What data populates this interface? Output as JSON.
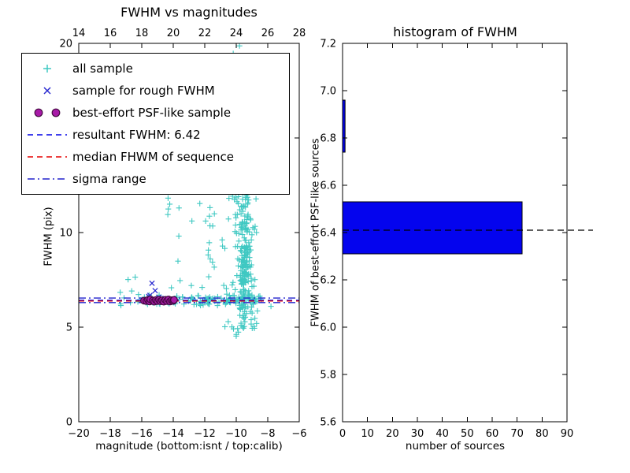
{
  "colors": {
    "all_sample": "#3fc8c2",
    "rough": "#2a2ad0",
    "psf_fill": "#a81aa8",
    "psf_edge": "#43093f",
    "resultant": "#0000e6",
    "median": "#e60000",
    "sigma": "#2222cc",
    "bar": "#0404ee",
    "axis": "#000000"
  },
  "chart_data": [
    {
      "type": "scatter",
      "title": "FWHM vs magnitudes",
      "xlabel": "magnitude (bottom:isnt / top:calib)",
      "ylabel": "FWHM (pix)",
      "xlim": [
        -20,
        -6
      ],
      "ylim": [
        0,
        20
      ],
      "x_ticks": [
        -20,
        -18,
        -16,
        -14,
        -12,
        -10,
        -8,
        -6
      ],
      "y_ticks": [
        0,
        5,
        10,
        15,
        20
      ],
      "top_axis_ticks": [
        14,
        16,
        18,
        20,
        22,
        24,
        26,
        28
      ],
      "grid": false,
      "legend_position": "upper left",
      "legend": [
        {
          "marker": "plus",
          "label": "all sample"
        },
        {
          "marker": "cross",
          "label": "sample for rough FWHM"
        },
        {
          "marker": "circles",
          "label": "best-effort PSF-like sample"
        },
        {
          "marker": "dash-blue",
          "label": "resultant FWHM: 6.42"
        },
        {
          "marker": "dash-red",
          "label": "median FHWM of sequence"
        },
        {
          "marker": "dashdot-blue",
          "label": "sigma range"
        }
      ],
      "lines": [
        {
          "name": "resultant-fwhm",
          "y": 6.42,
          "style": "dashed",
          "color_key": "resultant"
        },
        {
          "name": "median-fwhm",
          "y": 6.38,
          "style": "dashed",
          "color_key": "median"
        },
        {
          "name": "sigma-upper",
          "y": 6.54,
          "style": "dashdot",
          "color_key": "sigma"
        },
        {
          "name": "sigma-lower",
          "y": 6.3,
          "style": "dashdot",
          "color_key": "sigma"
        }
      ],
      "series": [
        {
          "name": "all sample",
          "marker": "plus",
          "color_key": "all_sample",
          "seed": 7,
          "clusters": [
            {
              "count": 130,
              "x": {
                "dist": "uniform",
                "min": -16.3,
                "max": -8.2
              },
              "y": {
                "dist": "normal",
                "mean": 6.42,
                "sd": 0.13
              }
            },
            {
              "count": 150,
              "x": {
                "dist": "normal",
                "mean": -9.45,
                "sd": 0.3
              },
              "y": {
                "dist": "normal",
                "mean": 10.5,
                "sd": 2.1
              }
            },
            {
              "count": 80,
              "x": {
                "dist": "normal",
                "mean": -9.5,
                "sd": 0.25
              },
              "y": {
                "dist": "normal",
                "mean": 7.3,
                "sd": 1.0
              }
            },
            {
              "count": 55,
              "x": {
                "dist": "normal",
                "mean": -9.6,
                "sd": 0.5
              },
              "y": {
                "dist": "uniform",
                "min": 6.0,
                "max": 20.0
              }
            },
            {
              "count": 25,
              "x": {
                "dist": "normal",
                "mean": -9.3,
                "sd": 0.8
              },
              "y": {
                "dist": "uniform",
                "min": 4.3,
                "max": 6.1
              }
            },
            {
              "count": 30,
              "x": {
                "dist": "uniform",
                "min": -14.5,
                "max": -10.2
              },
              "y": {
                "dist": "uniform",
                "min": 6.9,
                "max": 13.5
              }
            },
            {
              "count": 8,
              "x": {
                "dist": "uniform",
                "min": -17.4,
                "max": -16.3
              },
              "y": {
                "dist": "normal",
                "mean": 6.6,
                "sd": 0.5
              }
            },
            {
              "count": 15,
              "x": {
                "dist": "uniform",
                "min": -12.3,
                "max": -10.8
              },
              "y": {
                "dist": "uniform",
                "min": 9.0,
                "max": 19.5
              }
            },
            {
              "count": 6,
              "x": {
                "dist": "uniform",
                "min": -13.9,
                "max": -12.9
              },
              "y": {
                "dist": "uniform",
                "min": 13.5,
                "max": 16.5
              }
            }
          ]
        },
        {
          "name": "sample for rough FWHM",
          "marker": "cross",
          "color_key": "rough",
          "points": [
            [
              -15.55,
              6.62
            ],
            [
              -15.35,
              7.32
            ],
            [
              -15.15,
              6.93
            ],
            [
              -14.92,
              6.58
            ],
            [
              -15.42,
              6.47
            ],
            [
              -15.02,
              6.41
            ],
            [
              -14.78,
              6.52
            ],
            [
              -15.22,
              6.49
            ],
            [
              -14.68,
              6.44
            ],
            [
              -15.62,
              6.4
            ],
            [
              -14.95,
              6.36
            ],
            [
              -15.48,
              6.68
            ]
          ]
        },
        {
          "name": "best-effort PSF-like sample",
          "marker": "circle",
          "color_key": "psf_fill",
          "edge_color_key": "psf_edge",
          "points": [
            [
              -15.85,
              6.4
            ],
            [
              -15.7,
              6.38
            ],
            [
              -15.6,
              6.44
            ],
            [
              -15.5,
              6.36
            ],
            [
              -15.45,
              6.47
            ],
            [
              -15.3,
              6.4
            ],
            [
              -15.2,
              6.35
            ],
            [
              -15.1,
              6.43
            ],
            [
              -15.0,
              6.38
            ],
            [
              -14.9,
              6.45
            ],
            [
              -14.8,
              6.37
            ],
            [
              -14.7,
              6.42
            ],
            [
              -14.6,
              6.35
            ],
            [
              -14.5,
              6.44
            ],
            [
              -14.4,
              6.38
            ],
            [
              -14.3,
              6.46
            ],
            [
              -14.2,
              6.36
            ],
            [
              -14.1,
              6.42
            ],
            [
              -14.0,
              6.39
            ],
            [
              -13.95,
              6.44
            ]
          ]
        }
      ]
    },
    {
      "type": "barh",
      "title": "histogram of FWHM",
      "xlabel": "number of sources",
      "ylabel": "FWHM of best-effort PSF-like sources",
      "xlim": [
        0,
        90
      ],
      "ylim": [
        5.6,
        7.2
      ],
      "x_ticks": [
        0,
        10,
        20,
        30,
        40,
        50,
        60,
        70,
        80,
        90
      ],
      "y_ticks": [
        5.6,
        5.8,
        6.0,
        6.2,
        6.4,
        6.6,
        6.8,
        7.0,
        7.2
      ],
      "bars": [
        {
          "y_from": 6.31,
          "y_to": 6.53,
          "count": 72
        },
        {
          "y_from": 6.74,
          "y_to": 6.96,
          "count": 1
        }
      ],
      "bar_color_key": "bar",
      "dashed_line": {
        "y": 6.41,
        "color": "#000000"
      }
    }
  ]
}
